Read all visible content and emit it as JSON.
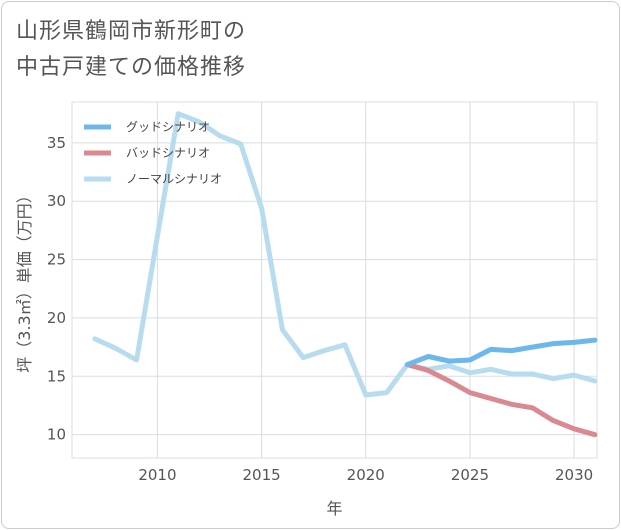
{
  "title": {
    "line1": "山形県鶴岡市新形町の",
    "line2": "中古戸建ての価格推移"
  },
  "chart_data": {
    "type": "line",
    "xlabel": "年",
    "ylabel": "坪（3.3㎡）単価（万円）",
    "xlim": [
      2005.9,
      2031.1
    ],
    "ylim": [
      8,
      38.5
    ],
    "xticks": [
      2010,
      2015,
      2020,
      2025,
      2030
    ],
    "yticks": [
      10,
      15,
      20,
      25,
      30,
      35
    ],
    "grid": true,
    "legend_position": "top-left",
    "series": [
      {
        "name": "グッドシナリオ",
        "color": "#6cb8ea",
        "x": [
          2022,
          2023,
          2024,
          2025,
          2026,
          2027,
          2028,
          2029,
          2030,
          2031
        ],
        "y": [
          16.0,
          16.7,
          16.3,
          16.4,
          17.3,
          17.2,
          17.5,
          17.8,
          17.9,
          18.1
        ]
      },
      {
        "name": "バッドシナリオ",
        "color": "#d9898f",
        "x": [
          2022,
          2023,
          2024,
          2025,
          2026,
          2027,
          2028,
          2029,
          2030,
          2031
        ],
        "y": [
          16.0,
          15.5,
          14.6,
          13.6,
          13.1,
          12.6,
          12.3,
          11.2,
          10.5,
          10.0
        ]
      },
      {
        "name": "ノーマルシナリオ",
        "color": "#b8dcef",
        "x": [
          2007,
          2008,
          2009,
          2010,
          2011,
          2012,
          2013,
          2014,
          2015,
          2016,
          2017,
          2018,
          2019,
          2020,
          2021,
          2022,
          2023,
          2024,
          2025,
          2026,
          2027,
          2028,
          2029,
          2030,
          2031
        ],
        "y": [
          18.2,
          17.4,
          16.4,
          27.0,
          37.5,
          36.8,
          35.6,
          34.9,
          29.4,
          19.0,
          16.6,
          17.2,
          17.7,
          13.4,
          13.6,
          16.0,
          15.6,
          15.9,
          15.3,
          15.6,
          15.2,
          15.2,
          14.8,
          15.1,
          14.6
        ]
      }
    ]
  }
}
